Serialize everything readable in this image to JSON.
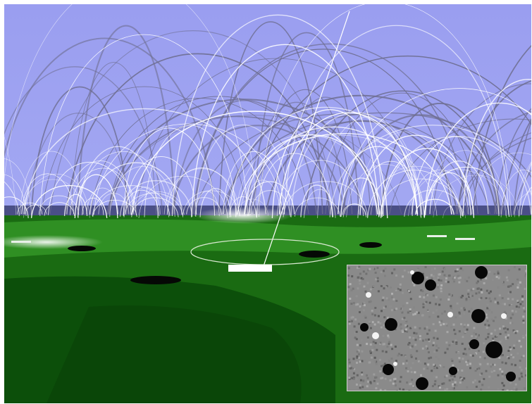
{
  "image": {
    "subject": "magnetic-field-lines-over-solar-surface",
    "colors": {
      "sky": "#a3a8f2",
      "sky_top": "#9a9ef0",
      "horizon": "#4a4f86",
      "surface_light": "#2f8f23",
      "surface_mid": "#1a6b12",
      "surface_dark": "#0c4f0a",
      "field_lines_bright": "#ffffff",
      "field_lines_dim": "#6f6f92",
      "inset_background": "#8a8a8a"
    },
    "inset": {
      "kind": "magnetogram"
    }
  }
}
